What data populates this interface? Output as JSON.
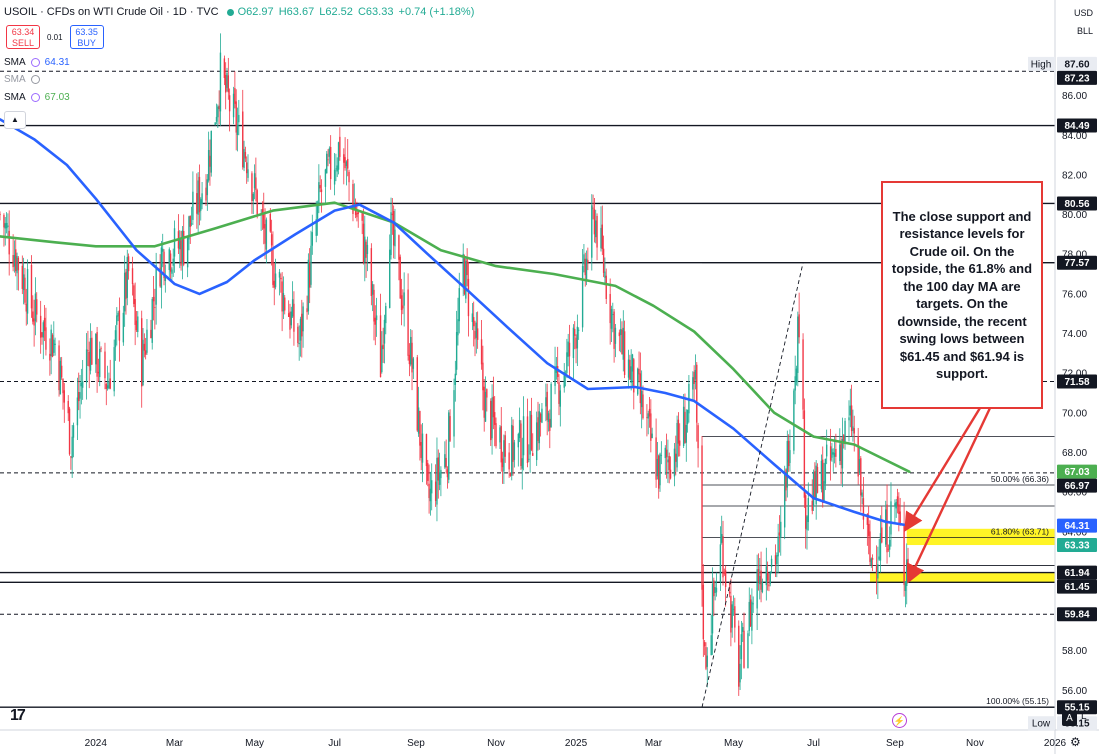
{
  "header": {
    "symbol": "USOIL",
    "description": "CFDs on WTI Crude Oil",
    "interval": "1D",
    "source": "TVC",
    "open": "O62.97",
    "high": "H63.67",
    "low": "L62.52",
    "close": "C63.33",
    "change": "+0.74 (+1.18%)"
  },
  "trade": {
    "sell_price": "63.34",
    "sell_label": "SELL",
    "spread": "0.01",
    "buy_price": "63.35",
    "buy_label": "BUY"
  },
  "indicators": [
    {
      "name": "SMA",
      "value": "64.31",
      "color": "#2962ff"
    },
    {
      "name": "SMA",
      "value": "",
      "color": "#9598a1"
    },
    {
      "name": "SMA",
      "value": "67.03",
      "color": "#4caf50"
    }
  ],
  "axis_units": {
    "currency": "USD",
    "unit": "BLL"
  },
  "callout_text": "The close support and resistance levels for Crude oil. On the topside, the 61.8% and the 100 day MA are targets. On the downside, the recent swing lows between $61.45 and $61.94 is support.",
  "branding": {
    "auto_label": "A",
    "log_label": "L"
  },
  "colors": {
    "up": "#22ab94",
    "down": "#f23645",
    "sma_blue": "#2962ff",
    "sma_green": "#4caf50",
    "highlight": "#fff200",
    "callout_border": "#e53935"
  },
  "chart_data": {
    "type": "candlestick",
    "ylim": [
      54,
      88.2
    ],
    "x_ticks": [
      {
        "label": "2024",
        "date": "2024-01-01"
      },
      {
        "label": "Mar",
        "date": "2024-03-01"
      },
      {
        "label": "May",
        "date": "2024-05-01"
      },
      {
        "label": "Jul",
        "date": "2024-07-01"
      },
      {
        "label": "Sep",
        "date": "2024-09-01"
      },
      {
        "label": "Nov",
        "date": "2024-11-01"
      },
      {
        "label": "2025",
        "date": "2025-01-01"
      },
      {
        "label": "Mar",
        "date": "2025-03-01"
      },
      {
        "label": "May",
        "date": "2025-05-01"
      },
      {
        "label": "Jul",
        "date": "2025-07-01"
      },
      {
        "label": "Sep",
        "date": "2025-09-01"
      },
      {
        "label": "Nov",
        "date": "2025-11-01"
      },
      {
        "label": "2026",
        "date": "2026-01-01"
      }
    ],
    "y_ticks": [
      56,
      58,
      60,
      62,
      64,
      66,
      68,
      70,
      72,
      74,
      76,
      78,
      80,
      82,
      84,
      86
    ],
    "price_labels": [
      {
        "value": 87.6,
        "label": "87.60",
        "caption": "High",
        "style": "plain"
      },
      {
        "value": 87.23,
        "label": "87.23",
        "style": "dark"
      },
      {
        "value": 84.49,
        "label": "84.49",
        "style": "dark"
      },
      {
        "value": 80.56,
        "label": "80.56",
        "style": "dark"
      },
      {
        "value": 77.57,
        "label": "77.57",
        "style": "dark"
      },
      {
        "value": 71.58,
        "label": "71.58",
        "style": "dark"
      },
      {
        "value": 67.03,
        "label": "67.03",
        "style": "green"
      },
      {
        "value": 66.97,
        "label": "66.97",
        "style": "dark"
      },
      {
        "value": 64.31,
        "label": "64.31",
        "style": "blue"
      },
      {
        "value": 63.33,
        "label": "63.33",
        "style": "teal"
      },
      {
        "value": 61.94,
        "label": "61.94",
        "style": "dark"
      },
      {
        "value": 61.45,
        "label": "61.45",
        "style": "dark"
      },
      {
        "value": 59.84,
        "label": "59.84",
        "style": "dark"
      },
      {
        "value": 55.15,
        "label": "55.15",
        "style": "dark"
      },
      {
        "value": 55.15,
        "label": "55.15",
        "caption": "Low",
        "style": "plain"
      }
    ],
    "horizontal_levels": [
      {
        "value": 87.23,
        "style": "dashed"
      },
      {
        "value": 84.49,
        "style": "solid"
      },
      {
        "value": 80.56,
        "style": "solid"
      },
      {
        "value": 77.57,
        "style": "solid"
      },
      {
        "value": 71.58,
        "style": "dashed"
      },
      {
        "value": 66.97,
        "style": "dashed"
      },
      {
        "value": 61.94,
        "style": "solid"
      },
      {
        "value": 61.45,
        "style": "solid"
      },
      {
        "value": 59.84,
        "style": "dashed"
      },
      {
        "value": 55.15,
        "style": "solid"
      }
    ],
    "fibonacci": [
      {
        "value": 77.57,
        "start": "2025-04-07",
        "label": ""
      },
      {
        "value": 68.8,
        "start": "2025-04-07",
        "label": ""
      },
      {
        "value": 66.36,
        "start": "2025-04-07",
        "label": "50.00% (66.36)"
      },
      {
        "value": 65.3,
        "start": "2025-04-07",
        "label": ""
      },
      {
        "value": 63.71,
        "start": "2025-04-07",
        "label": "61.80% (63.71)"
      },
      {
        "value": 62.3,
        "start": "2025-04-07",
        "label": ""
      },
      {
        "value": 55.15,
        "start": "2025-04-07",
        "label": "100.00% (55.15)"
      }
    ],
    "highlight_zones": [
      {
        "from": 63.33,
        "to": 64.15,
        "start": "2025-09-10"
      },
      {
        "from": 61.45,
        "to": 61.94,
        "start": "2025-08-13"
      }
    ],
    "trendline": {
      "from": {
        "date": "2025-04-07",
        "value": 55.15
      },
      "to": {
        "date": "2025-06-23",
        "value": 77.57
      }
    },
    "arrows": [
      {
        "to": {
          "date": "2025-09-10",
          "value": 64.2
        }
      },
      {
        "to": {
          "date": "2025-09-12",
          "value": 61.6
        }
      }
    ],
    "sma_blue": [
      {
        "date": "2023-10-20",
        "value": 84.8
      },
      {
        "date": "2023-11-15",
        "value": 83.8
      },
      {
        "date": "2023-12-10",
        "value": 82.5
      },
      {
        "date": "2024-01-01",
        "value": 80.8
      },
      {
        "date": "2024-02-01",
        "value": 78.2
      },
      {
        "date": "2024-03-01",
        "value": 76.5
      },
      {
        "date": "2024-03-20",
        "value": 76.0
      },
      {
        "date": "2024-04-10",
        "value": 76.6
      },
      {
        "date": "2024-05-01",
        "value": 77.7
      },
      {
        "date": "2024-06-01",
        "value": 79.0
      },
      {
        "date": "2024-07-01",
        "value": 80.2
      },
      {
        "date": "2024-07-20",
        "value": 80.5
      },
      {
        "date": "2024-08-15",
        "value": 79.6
      },
      {
        "date": "2024-09-10",
        "value": 78.0
      },
      {
        "date": "2024-10-10",
        "value": 76.2
      },
      {
        "date": "2024-11-10",
        "value": 74.3
      },
      {
        "date": "2024-12-10",
        "value": 72.5
      },
      {
        "date": "2025-01-10",
        "value": 71.2
      },
      {
        "date": "2025-02-15",
        "value": 71.3
      },
      {
        "date": "2025-03-10",
        "value": 71.0
      },
      {
        "date": "2025-04-01",
        "value": 70.6
      },
      {
        "date": "2025-05-01",
        "value": 69.2
      },
      {
        "date": "2025-06-01",
        "value": 67.4
      },
      {
        "date": "2025-07-01",
        "value": 65.7
      },
      {
        "date": "2025-08-01",
        "value": 65.0
      },
      {
        "date": "2025-08-25",
        "value": 64.5
      },
      {
        "date": "2025-09-12",
        "value": 64.31
      }
    ],
    "sma_green": [
      {
        "date": "2023-10-20",
        "value": 78.9
      },
      {
        "date": "2023-12-01",
        "value": 78.6
      },
      {
        "date": "2024-01-01",
        "value": 78.4
      },
      {
        "date": "2024-02-15",
        "value": 78.4
      },
      {
        "date": "2024-04-01",
        "value": 79.3
      },
      {
        "date": "2024-05-15",
        "value": 80.2
      },
      {
        "date": "2024-07-01",
        "value": 80.6
      },
      {
        "date": "2024-08-15",
        "value": 79.6
      },
      {
        "date": "2024-09-20",
        "value": 78.2
      },
      {
        "date": "2024-11-01",
        "value": 77.4
      },
      {
        "date": "2024-12-15",
        "value": 77.0
      },
      {
        "date": "2025-01-31",
        "value": 76.4
      },
      {
        "date": "2025-03-01",
        "value": 75.4
      },
      {
        "date": "2025-04-01",
        "value": 74.1
      },
      {
        "date": "2025-05-01",
        "value": 72.2
      },
      {
        "date": "2025-06-01",
        "value": 70.0
      },
      {
        "date": "2025-07-01",
        "value": 68.8
      },
      {
        "date": "2025-08-01",
        "value": 68.4
      },
      {
        "date": "2025-09-12",
        "value": 67.03
      }
    ],
    "price_path": [
      {
        "date": "2023-10-20",
        "value": 80.0
      },
      {
        "date": "2023-11-01",
        "value": 78.0
      },
      {
        "date": "2023-11-15",
        "value": 75.0
      },
      {
        "date": "2023-12-01",
        "value": 73.5
      },
      {
        "date": "2023-12-13",
        "value": 68.6
      },
      {
        "date": "2023-12-27",
        "value": 73.5
      },
      {
        "date": "2024-01-10",
        "value": 71.5
      },
      {
        "date": "2024-01-26",
        "value": 77.0
      },
      {
        "date": "2024-02-05",
        "value": 72.5
      },
      {
        "date": "2024-02-20",
        "value": 78.0
      },
      {
        "date": "2024-03-08",
        "value": 78.5
      },
      {
        "date": "2024-03-25",
        "value": 82.0
      },
      {
        "date": "2024-04-05",
        "value": 87.0
      },
      {
        "date": "2024-04-12",
        "value": 85.5
      },
      {
        "date": "2024-04-25",
        "value": 83.0
      },
      {
        "date": "2024-05-10",
        "value": 78.5
      },
      {
        "date": "2024-06-04",
        "value": 73.5
      },
      {
        "date": "2024-06-20",
        "value": 81.0
      },
      {
        "date": "2024-07-05",
        "value": 83.5
      },
      {
        "date": "2024-07-25",
        "value": 78.0
      },
      {
        "date": "2024-08-05",
        "value": 72.5
      },
      {
        "date": "2024-08-12",
        "value": 79.5
      },
      {
        "date": "2024-08-25",
        "value": 74.5
      },
      {
        "date": "2024-09-10",
        "value": 65.5
      },
      {
        "date": "2024-09-25",
        "value": 68.0
      },
      {
        "date": "2024-10-07",
        "value": 77.5
      },
      {
        "date": "2024-10-25",
        "value": 70.0
      },
      {
        "date": "2024-11-10",
        "value": 68.0
      },
      {
        "date": "2024-11-25",
        "value": 68.7
      },
      {
        "date": "2024-12-10",
        "value": 70.0
      },
      {
        "date": "2024-12-30",
        "value": 73.5
      },
      {
        "date": "2025-01-15",
        "value": 80.0
      },
      {
        "date": "2025-01-31",
        "value": 74.0
      },
      {
        "date": "2025-02-15",
        "value": 71.5
      },
      {
        "date": "2025-03-05",
        "value": 67.0
      },
      {
        "date": "2025-03-20",
        "value": 68.5
      },
      {
        "date": "2025-04-02",
        "value": 71.2
      },
      {
        "date": "2025-04-09",
        "value": 57.5
      },
      {
        "date": "2025-04-22",
        "value": 63.5
      },
      {
        "date": "2025-05-05",
        "value": 57.0
      },
      {
        "date": "2025-05-20",
        "value": 62.0
      },
      {
        "date": "2025-06-05",
        "value": 63.0
      },
      {
        "date": "2025-06-20",
        "value": 75.0
      },
      {
        "date": "2025-06-25",
        "value": 65.0
      },
      {
        "date": "2025-07-10",
        "value": 67.0
      },
      {
        "date": "2025-07-30",
        "value": 69.5
      },
      {
        "date": "2025-08-13",
        "value": 62.5
      },
      {
        "date": "2025-08-25",
        "value": 64.0
      },
      {
        "date": "2025-09-02",
        "value": 65.5
      },
      {
        "date": "2025-09-08",
        "value": 62.0
      },
      {
        "date": "2025-09-12",
        "value": 63.33
      }
    ],
    "x_range": [
      "2023-10-20",
      "2026-01-01"
    ]
  }
}
